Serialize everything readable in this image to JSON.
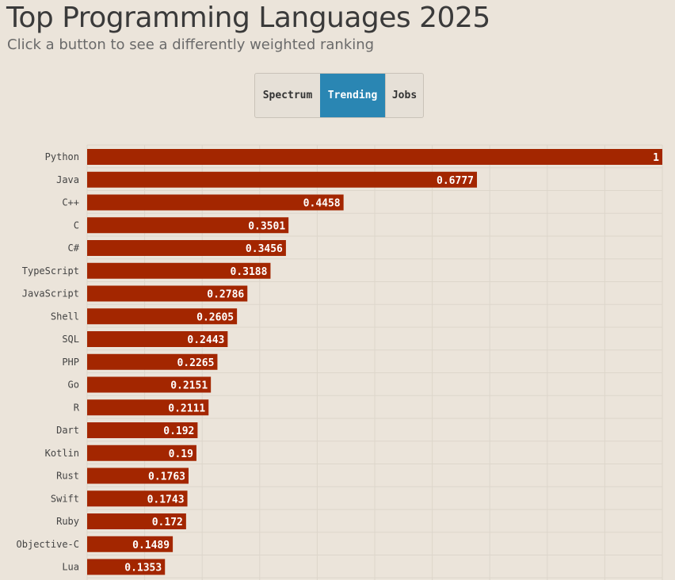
{
  "header": {
    "title": "Top Programming Languages 2025",
    "subtitle": "Click a button to see a differently weighted ranking"
  },
  "buttons": [
    {
      "label": "Spectrum",
      "active": false
    },
    {
      "label": "Trending",
      "active": true
    },
    {
      "label": "Jobs",
      "active": false
    }
  ],
  "colors": {
    "background": "#ebe4da",
    "bar": "#a32600",
    "active_button": "#2a86b3",
    "grid": "#ddd6cb"
  },
  "chart_data": {
    "type": "bar",
    "orientation": "horizontal",
    "categories": [
      "Python",
      "Java",
      "C++",
      "C",
      "C#",
      "TypeScript",
      "JavaScript",
      "Shell",
      "SQL",
      "PHP",
      "Go",
      "R",
      "Dart",
      "Kotlin",
      "Rust",
      "Swift",
      "Ruby",
      "Objective-C",
      "Lua"
    ],
    "values": [
      1,
      0.6777,
      0.4458,
      0.3501,
      0.3456,
      0.3188,
      0.2786,
      0.2605,
      0.2443,
      0.2265,
      0.2151,
      0.2111,
      0.192,
      0.19,
      0.1763,
      0.1743,
      0.172,
      0.1489,
      0.1353
    ],
    "value_labels": [
      "1",
      "0.6777",
      "0.4458",
      "0.3501",
      "0.3456",
      "0.3188",
      "0.2786",
      "0.2605",
      "0.2443",
      "0.2265",
      "0.2151",
      "0.2111",
      "0.192",
      "0.19",
      "0.1763",
      "0.1743",
      "0.172",
      "0.1489",
      "0.1353"
    ],
    "xlim": [
      0,
      1
    ],
    "grid": true,
    "title": "",
    "xlabel": "",
    "ylabel": ""
  }
}
